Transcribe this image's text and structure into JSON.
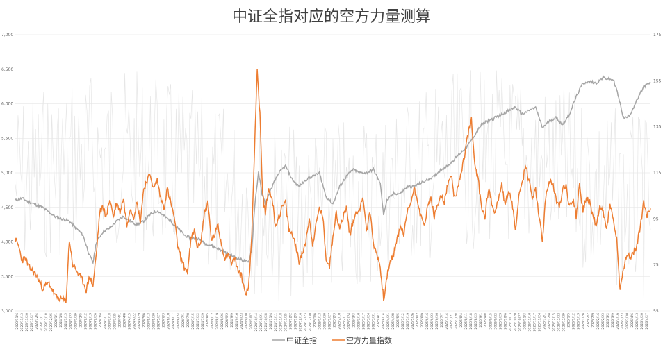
{
  "chart_data": {
    "type": "line",
    "title": "中证全指对应的空方力量测算",
    "xlabel": "",
    "ylabel": "",
    "left_axis": {
      "min": 3000,
      "max": 7000,
      "ticks": [
        "3,000",
        "3,500",
        "4,000",
        "4,500",
        "5,000",
        "5,500",
        "6,000",
        "6,500",
        "7,000"
      ]
    },
    "right_axis": {
      "min": 55,
      "max": 175,
      "ticks": [
        "55",
        "75",
        "95",
        "115",
        "135",
        "155",
        "175"
      ]
    },
    "legend_position": "bottom",
    "grid": true,
    "colors": {
      "index": "#a5a5a5",
      "bear": "#ed7d31",
      "background_line": "#e6e6e6",
      "grid": "#e0e0e0"
    },
    "series": [
      {
        "name": "中证全指",
        "axis": "left",
        "anchors": [
          [
            0,
            4600
          ],
          [
            10,
            4630
          ],
          [
            20,
            4580
          ],
          [
            40,
            4500
          ],
          [
            60,
            4360
          ],
          [
            80,
            4300
          ],
          [
            90,
            4200
          ],
          [
            100,
            4100
          ],
          [
            110,
            3800
          ],
          [
            115,
            3700
          ],
          [
            120,
            4000
          ],
          [
            130,
            4150
          ],
          [
            140,
            4200
          ],
          [
            150,
            4300
          ],
          [
            160,
            4370
          ],
          [
            170,
            4300
          ],
          [
            180,
            4250
          ],
          [
            190,
            4300
          ],
          [
            200,
            4400
          ],
          [
            210,
            4450
          ],
          [
            220,
            4380
          ],
          [
            230,
            4300
          ],
          [
            240,
            4200
          ],
          [
            250,
            4100
          ],
          [
            260,
            4050
          ],
          [
            270,
            4050
          ],
          [
            280,
            3980
          ],
          [
            290,
            3950
          ],
          [
            300,
            3900
          ],
          [
            310,
            3850
          ],
          [
            320,
            3800
          ],
          [
            330,
            3760
          ],
          [
            340,
            3720
          ],
          [
            345,
            3700
          ],
          [
            350,
            3900
          ],
          [
            355,
            4600
          ],
          [
            360,
            5000
          ],
          [
            365,
            4700
          ],
          [
            370,
            4550
          ],
          [
            380,
            4800
          ],
          [
            390,
            5000
          ],
          [
            400,
            5100
          ],
          [
            410,
            4900
          ],
          [
            420,
            4800
          ],
          [
            430,
            4900
          ],
          [
            440,
            4950
          ],
          [
            450,
            5000
          ],
          [
            460,
            4650
          ],
          [
            470,
            4550
          ],
          [
            480,
            4800
          ],
          [
            490,
            4950
          ],
          [
            500,
            5050
          ],
          [
            510,
            5000
          ],
          [
            520,
            5000
          ],
          [
            530,
            5050
          ],
          [
            540,
            4850
          ],
          [
            545,
            4400
          ],
          [
            550,
            4600
          ],
          [
            560,
            4700
          ],
          [
            570,
            4700
          ],
          [
            580,
            4800
          ],
          [
            590,
            4800
          ],
          [
            600,
            4850
          ],
          [
            610,
            4900
          ],
          [
            620,
            4950
          ],
          [
            630,
            5050
          ],
          [
            640,
            5100
          ],
          [
            650,
            5200
          ],
          [
            660,
            5300
          ],
          [
            670,
            5400
          ],
          [
            680,
            5550
          ],
          [
            690,
            5700
          ],
          [
            700,
            5750
          ],
          [
            710,
            5800
          ],
          [
            720,
            5850
          ],
          [
            730,
            5900
          ],
          [
            740,
            5950
          ],
          [
            750,
            5850
          ],
          [
            760,
            5900
          ],
          [
            770,
            5950
          ],
          [
            780,
            5650
          ],
          [
            790,
            5750
          ],
          [
            800,
            5800
          ],
          [
            810,
            5700
          ],
          [
            820,
            5850
          ],
          [
            830,
            6100
          ],
          [
            840,
            6300
          ],
          [
            850,
            6320
          ],
          [
            860,
            6300
          ],
          [
            870,
            6380
          ],
          [
            880,
            6350
          ],
          [
            885,
            6350
          ],
          [
            890,
            6200
          ],
          [
            895,
            6000
          ],
          [
            900,
            5800
          ],
          [
            905,
            5800
          ],
          [
            910,
            5850
          ],
          [
            920,
            6050
          ],
          [
            930,
            6250
          ],
          [
            940,
            6300
          ]
        ]
      },
      {
        "name": "空方力量指数",
        "axis": "right",
        "anchors": [
          [
            0,
            86
          ],
          [
            5,
            83
          ],
          [
            10,
            77
          ],
          [
            15,
            78
          ],
          [
            20,
            74
          ],
          [
            30,
            71
          ],
          [
            40,
            65
          ],
          [
            50,
            67
          ],
          [
            60,
            61
          ],
          [
            70,
            60
          ],
          [
            75,
            59
          ],
          [
            80,
            86
          ],
          [
            85,
            75
          ],
          [
            90,
            73
          ],
          [
            95,
            70
          ],
          [
            100,
            68
          ],
          [
            105,
            64
          ],
          [
            110,
            70
          ],
          [
            115,
            66
          ],
          [
            120,
            80
          ],
          [
            125,
            98
          ],
          [
            130,
            100
          ],
          [
            135,
            96
          ],
          [
            140,
            104
          ],
          [
            145,
            96
          ],
          [
            150,
            102
          ],
          [
            155,
            98
          ],
          [
            160,
            104
          ],
          [
            165,
            92
          ],
          [
            170,
            100
          ],
          [
            175,
            96
          ],
          [
            180,
            102
          ],
          [
            185,
            94
          ],
          [
            190,
            108
          ],
          [
            195,
            112
          ],
          [
            200,
            114
          ],
          [
            205,
            108
          ],
          [
            210,
            112
          ],
          [
            215,
            104
          ],
          [
            220,
            100
          ],
          [
            225,
            108
          ],
          [
            230,
            102
          ],
          [
            235,
            96
          ],
          [
            240,
            84
          ],
          [
            245,
            78
          ],
          [
            250,
            74
          ],
          [
            255,
            72
          ],
          [
            260,
            86
          ],
          [
            265,
            90
          ],
          [
            270,
            82
          ],
          [
            275,
            86
          ],
          [
            280,
            98
          ],
          [
            285,
            102
          ],
          [
            290,
            86
          ],
          [
            295,
            88
          ],
          [
            300,
            92
          ],
          [
            305,
            84
          ],
          [
            310,
            78
          ],
          [
            315,
            80
          ],
          [
            320,
            76
          ],
          [
            325,
            78
          ],
          [
            330,
            72
          ],
          [
            335,
            70
          ],
          [
            340,
            63
          ],
          [
            345,
            64
          ],
          [
            350,
            88
          ],
          [
            355,
            135
          ],
          [
            358,
            160
          ],
          [
            362,
            140
          ],
          [
            366,
            105
          ],
          [
            370,
            98
          ],
          [
            375,
            108
          ],
          [
            380,
            104
          ],
          [
            385,
            92
          ],
          [
            390,
            96
          ],
          [
            395,
            100
          ],
          [
            400,
            102
          ],
          [
            405,
            90
          ],
          [
            410,
            88
          ],
          [
            415,
            84
          ],
          [
            420,
            76
          ],
          [
            425,
            80
          ],
          [
            430,
            86
          ],
          [
            435,
            95
          ],
          [
            440,
            84
          ],
          [
            445,
            92
          ],
          [
            450,
            100
          ],
          [
            455,
            96
          ],
          [
            460,
            78
          ],
          [
            465,
            74
          ],
          [
            470,
            88
          ],
          [
            475,
            98
          ],
          [
            480,
            90
          ],
          [
            485,
            96
          ],
          [
            490,
            100
          ],
          [
            495,
            88
          ],
          [
            500,
            94
          ],
          [
            505,
            98
          ],
          [
            510,
            100
          ],
          [
            515,
            104
          ],
          [
            520,
            90
          ],
          [
            525,
            98
          ],
          [
            530,
            84
          ],
          [
            535,
            80
          ],
          [
            540,
            74
          ],
          [
            545,
            60
          ],
          [
            550,
            70
          ],
          [
            555,
            76
          ],
          [
            560,
            80
          ],
          [
            565,
            86
          ],
          [
            570,
            92
          ],
          [
            575,
            88
          ],
          [
            580,
            98
          ],
          [
            585,
            102
          ],
          [
            590,
            108
          ],
          [
            595,
            104
          ],
          [
            600,
            96
          ],
          [
            605,
            92
          ],
          [
            610,
            100
          ],
          [
            615,
            104
          ],
          [
            620,
            96
          ],
          [
            625,
            100
          ],
          [
            630,
            106
          ],
          [
            635,
            102
          ],
          [
            640,
            110
          ],
          [
            645,
            114
          ],
          [
            650,
            104
          ],
          [
            655,
            108
          ],
          [
            660,
            116
          ],
          [
            665,
            122
          ],
          [
            670,
            132
          ],
          [
            675,
            138
          ],
          [
            680,
            118
          ],
          [
            685,
            112
          ],
          [
            690,
            100
          ],
          [
            695,
            96
          ],
          [
            700,
            108
          ],
          [
            705,
            102
          ],
          [
            710,
            98
          ],
          [
            715,
            104
          ],
          [
            720,
            110
          ],
          [
            725,
            100
          ],
          [
            730,
            108
          ],
          [
            735,
            102
          ],
          [
            740,
            90
          ],
          [
            745,
            104
          ],
          [
            750,
            110
          ],
          [
            755,
            118
          ],
          [
            760,
            112
          ],
          [
            765,
            104
          ],
          [
            770,
            108
          ],
          [
            775,
            96
          ],
          [
            780,
            86
          ],
          [
            785,
            104
          ],
          [
            790,
            112
          ],
          [
            795,
            110
          ],
          [
            800,
            104
          ],
          [
            805,
            100
          ],
          [
            810,
            108
          ],
          [
            815,
            110
          ],
          [
            820,
            100
          ],
          [
            825,
            104
          ],
          [
            830,
            96
          ],
          [
            835,
            110
          ],
          [
            840,
            98
          ],
          [
            845,
            104
          ],
          [
            850,
            102
          ],
          [
            855,
            96
          ],
          [
            860,
            92
          ],
          [
            865,
            100
          ],
          [
            870,
            98
          ],
          [
            875,
            90
          ],
          [
            880,
            102
          ],
          [
            885,
            94
          ],
          [
            890,
            86
          ],
          [
            895,
            64
          ],
          [
            900,
            72
          ],
          [
            905,
            80
          ],
          [
            910,
            78
          ],
          [
            915,
            80
          ],
          [
            920,
            84
          ],
          [
            925,
            92
          ],
          [
            930,
            102
          ],
          [
            935,
            96
          ],
          [
            940,
            100
          ]
        ]
      }
    ],
    "x_categories": [
      "2023/11/6",
      "2023/11/13",
      "2023/11/20",
      "2023/11/27",
      "2023/12/4",
      "2023/12/11",
      "2023/12/18",
      "2023/12/25",
      "2024/1/1",
      "2024/1/8",
      "2024/1/15",
      "2024/1/22",
      "2024/1/29",
      "2024/2/5",
      "2024/2/12",
      "2024/2/19",
      "2024/2/26",
      "2024/3/4",
      "2024/3/11",
      "2024/3/18",
      "2024/3/25",
      "2024/4/1",
      "2024/4/8",
      "2024/4/15",
      "2024/4/22",
      "2024/4/29",
      "2024/5/6",
      "2024/5/13",
      "2024/5/20",
      "2024/5/27",
      "2024/6/3",
      "2024/6/10",
      "2024/6/17",
      "2024/6/24",
      "2024/7/1",
      "2024/7/8",
      "2024/7/15",
      "2024/7/22",
      "2024/7/29",
      "2024/8/5",
      "2024/8/12",
      "2024/8/19",
      "2024/8/26",
      "2024/9/2",
      "2024/9/9",
      "2024/9/16",
      "2024/9/23",
      "2024/9/30",
      "2024/10/7",
      "2024/10/14",
      "2024/10/21",
      "2024/10/28",
      "2024/11/4",
      "2024/11/11",
      "2024/11/18",
      "2024/11/25",
      "2024/12/2",
      "2024/12/9",
      "2024/12/16",
      "2024/12/23",
      "2024/12/30",
      "2025/1/6",
      "2025/1/13",
      "2025/1/20",
      "2025/1/27",
      "2025/2/3",
      "2025/2/10",
      "2025/2/17",
      "2025/2/24",
      "2025/3/3",
      "2025/3/10",
      "2025/3/17",
      "2025/3/24",
      "2025/3/31",
      "2025/4/7",
      "2025/4/14",
      "2025/4/21",
      "2025/4/28",
      "2025/5/5",
      "2025/5/12",
      "2025/5/19",
      "2025/5/26",
      "2025/6/2",
      "2025/6/9",
      "2025/6/16",
      "2025/6/23",
      "2025/6/30",
      "2025/7/7",
      "2025/7/14",
      "2025/7/21",
      "2025/7/28",
      "2025/8/4",
      "2025/8/11",
      "2025/8/18",
      "2025/8/25",
      "2025/9/1",
      "2025/9/8",
      "2025/9/15",
      "2025/9/22",
      "2025/9/29",
      "2025/10/6",
      "2025/10/13",
      "2025/10/20",
      "2025/10/27",
      "2025/11/3",
      "2025/11/10",
      "2025/11/17",
      "2025/11/24",
      "2025/12/1",
      "2025/12/8",
      "2025/12/15",
      "2025/12/22",
      "2025/12/29",
      "2026/1/5",
      "2026/1/12",
      "2026/1/19",
      "2026/1/26",
      "2026/2/2",
      "2026/2/9",
      "2026/2/16",
      "2026/2/23",
      "2026/3/2",
      "2026/3/9",
      "2026/3/16",
      "2026/3/23",
      "2026/3/30",
      "2026/4/6",
      "2026/4/13",
      "2026/4/20",
      "2026/4/27"
    ]
  }
}
